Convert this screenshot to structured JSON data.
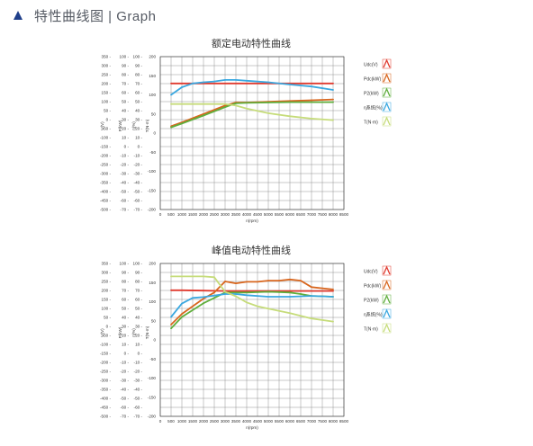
{
  "header": {
    "title": "特性曲线图 | Graph",
    "icon": "triangle-icon",
    "icon_color": "#1f3f8a"
  },
  "chart_data": [
    {
      "type": "line",
      "title": "额定电动特性曲线",
      "xlabel": "n(rpm)",
      "x_ticks": [
        0,
        500,
        1000,
        1500,
        2000,
        2500,
        3000,
        3500,
        4000,
        4500,
        5000,
        5500,
        6000,
        6500,
        7000,
        7500,
        8000,
        8500
      ],
      "xlim": [
        0,
        8500
      ],
      "y_axes": [
        {
          "label": "U(V)",
          "ticks": [
            "350",
            "300",
            "250",
            "200",
            "150",
            "100",
            "50",
            "0",
            "-50",
            "-100",
            "-150",
            "-200",
            "-250",
            "-300",
            "-350",
            "-400",
            "-450",
            "-500"
          ]
        },
        {
          "label": "P(kW)",
          "ticks": [
            "100",
            "90",
            "80",
            "70",
            "60",
            "50",
            "40",
            "30",
            "20",
            "10",
            "0",
            "-10",
            "-20",
            "-30",
            "-40",
            "-50",
            "-60",
            "-70"
          ]
        },
        {
          "label": "η(%)",
          "ticks": [
            "100",
            "90",
            "80",
            "70",
            "60",
            "50",
            "40",
            "30",
            "20",
            "10",
            "0",
            "-10",
            "-20",
            "-30",
            "-40",
            "-50",
            "-60",
            "-70"
          ]
        },
        {
          "label": "T(N·m)",
          "ticks": [
            "200",
            "150",
            "100",
            "50",
            "0",
            "-50",
            "-100",
            "-150",
            "-200"
          ]
        }
      ],
      "ylim": [
        -200,
        200
      ],
      "grid": true,
      "legend_position": "right",
      "series": [
        {
          "name": "Udc(V)",
          "color": "#e03a2f",
          "x": [
            500,
            1000,
            2000,
            3000,
            4000,
            5000,
            6000,
            7000,
            8000
          ],
          "y": [
            130,
            130,
            130,
            130,
            130,
            130,
            130,
            130,
            130
          ]
        },
        {
          "name": "Pdc(kW)",
          "color": "#d8661e",
          "x": [
            500,
            1000,
            2000,
            3000,
            3500,
            4000,
            5000,
            6000,
            7000,
            8000
          ],
          "y": [
            18,
            28,
            50,
            72,
            80,
            80,
            82,
            84,
            86,
            88
          ]
        },
        {
          "name": "P2(kW)",
          "color": "#5fae3c",
          "x": [
            500,
            1000,
            2000,
            3000,
            3500,
            4000,
            5000,
            6000,
            7000,
            8000
          ],
          "y": [
            15,
            25,
            46,
            68,
            78,
            79,
            80,
            81,
            81,
            81
          ]
        },
        {
          "name": "η系统(%)",
          "color": "#3aa8e0",
          "x": [
            500,
            1000,
            1500,
            2000,
            2500,
            3000,
            3500,
            4000,
            5000,
            6000,
            7000,
            8000
          ],
          "y": [
            100,
            120,
            130,
            133,
            135,
            139,
            139,
            137,
            133,
            127,
            122,
            113
          ]
        },
        {
          "name": "T(N·m)",
          "color": "#c6dc7a",
          "x": [
            500,
            1000,
            2000,
            3000,
            3500,
            4000,
            5000,
            6000,
            7000,
            8000
          ],
          "y": [
            76,
            76,
            76,
            76,
            72,
            64,
            52,
            44,
            38,
            34
          ]
        }
      ]
    },
    {
      "type": "line",
      "title": "峰值电动特性曲线",
      "xlabel": "n(rpm)",
      "x_ticks": [
        0,
        500,
        1000,
        1500,
        2000,
        2500,
        3000,
        3500,
        4000,
        4500,
        5000,
        5500,
        6000,
        6500,
        7000,
        7500,
        8000,
        8500
      ],
      "xlim": [
        0,
        8500
      ],
      "y_axes": [
        {
          "label": "U(V)",
          "ticks": [
            "350",
            "300",
            "250",
            "200",
            "150",
            "100",
            "50",
            "0",
            "-50",
            "-100",
            "-150",
            "-200",
            "-250",
            "-300",
            "-350",
            "-400",
            "-450",
            "-500"
          ]
        },
        {
          "label": "P(kW)",
          "ticks": [
            "100",
            "90",
            "80",
            "70",
            "60",
            "50",
            "40",
            "30",
            "20",
            "10",
            "0",
            "-10",
            "-20",
            "-30",
            "-40",
            "-50",
            "-60",
            "-70"
          ]
        },
        {
          "label": "η(%)",
          "ticks": [
            "100",
            "90",
            "80",
            "70",
            "60",
            "50",
            "40",
            "30",
            "20",
            "10",
            "0",
            "-10",
            "-20",
            "-30",
            "-40",
            "-50",
            "-60",
            "-70"
          ]
        },
        {
          "label": "T(N·m)",
          "ticks": [
            "200",
            "150",
            "100",
            "50",
            "0",
            "-50",
            "-100",
            "-150",
            "-200"
          ]
        }
      ],
      "ylim": [
        -200,
        200
      ],
      "grid": true,
      "legend_position": "right",
      "series": [
        {
          "name": "Udc(V)",
          "color": "#e03a2f",
          "x": [
            500,
            1000,
            2000,
            3000,
            4000,
            5000,
            6000,
            7000,
            8000
          ],
          "y": [
            130,
            130,
            129,
            128,
            128,
            128,
            128,
            128,
            128
          ]
        },
        {
          "name": "Pdc(kW)",
          "color": "#d8661e",
          "x": [
            500,
            1000,
            2000,
            2500,
            3000,
            3500,
            4000,
            4500,
            5000,
            5500,
            6000,
            6500,
            7000,
            7500,
            8000
          ],
          "y": [
            40,
            68,
            108,
            124,
            153,
            148,
            152,
            152,
            155,
            155,
            158,
            155,
            138,
            135,
            132
          ]
        },
        {
          "name": "P2(kW)",
          "color": "#5fae3c",
          "x": [
            500,
            1000,
            2000,
            2500,
            3000,
            3500,
            4000,
            4500,
            5000,
            5500,
            6000,
            6500,
            7000,
            7500,
            8000
          ],
          "y": [
            30,
            60,
            96,
            110,
            124,
            124,
            124,
            125,
            126,
            125,
            124,
            120,
            115,
            114,
            113
          ]
        },
        {
          "name": "η系统(%)",
          "color": "#3aa8e0",
          "x": [
            500,
            1000,
            1500,
            2000,
            2500,
            3000,
            3500,
            4000,
            5000,
            6000,
            7000,
            8000
          ],
          "y": [
            60,
            95,
            110,
            112,
            116,
            120,
            120,
            117,
            113,
            113,
            115,
            113
          ]
        },
        {
          "name": "T(N·m)",
          "color": "#c6dc7a",
          "x": [
            500,
            1000,
            1500,
            2000,
            2500,
            3000,
            3500,
            4000,
            4500,
            5000,
            6000,
            7000,
            8000
          ],
          "y": [
            166,
            166,
            166,
            166,
            164,
            126,
            114,
            98,
            88,
            82,
            70,
            56,
            48
          ]
        }
      ]
    }
  ]
}
